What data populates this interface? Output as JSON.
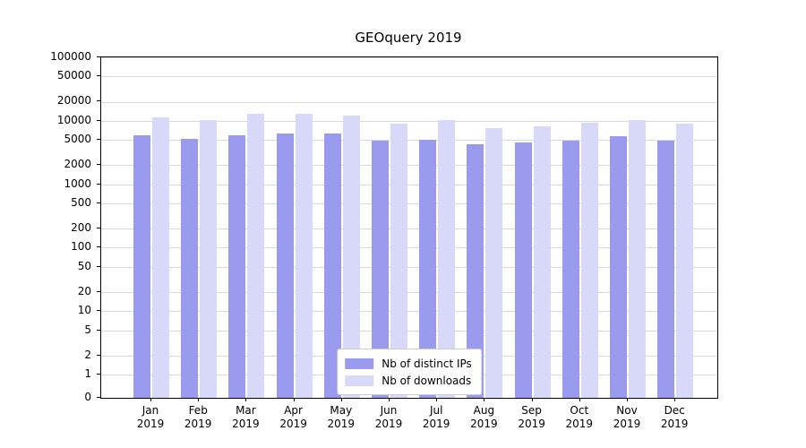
{
  "chart_data": {
    "type": "bar",
    "title": "GEOquery 2019",
    "year": "2019",
    "categories": [
      "Jan",
      "Feb",
      "Mar",
      "Apr",
      "May",
      "Jun",
      "Jul",
      "Aug",
      "Sep",
      "Oct",
      "Nov",
      "Dec"
    ],
    "series": [
      {
        "name": "Nb of distinct IPs",
        "key": "distinct-ips",
        "color": "#9a9aee",
        "values": [
          6000,
          5200,
          5900,
          6300,
          6300,
          4800,
          5100,
          4200,
          4500,
          4900,
          5700,
          4900
        ]
      },
      {
        "name": "Nb of downloads",
        "key": "downloads",
        "color": "#d8d8f8",
        "values": [
          11500,
          10200,
          12800,
          12800,
          12000,
          9000,
          10300,
          7600,
          8100,
          9200,
          10200,
          8900
        ]
      }
    ],
    "yticks": [
      0,
      1,
      2,
      5,
      10,
      20,
      50,
      100,
      200,
      500,
      1000,
      2000,
      5000,
      10000,
      20000,
      50000,
      100000
    ],
    "ylim": [
      0,
      100000
    ],
    "yscale": "symlog",
    "grid": true,
    "legend_position": "lower center",
    "xlabel": "",
    "ylabel": "",
    "colors": {
      "gridline": "#d9d9d9",
      "axis": "#000000",
      "legend_border": "#cccccc",
      "background": "#ffffff"
    }
  }
}
